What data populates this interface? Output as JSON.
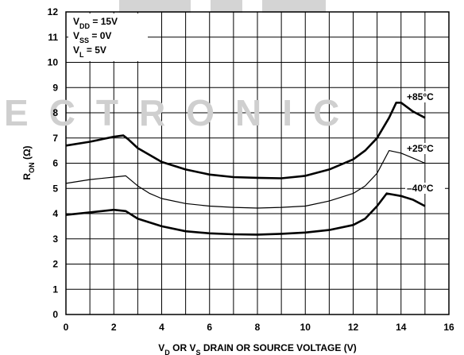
{
  "chart_data": {
    "type": "line",
    "watermark": "ECTRONIC",
    "xlabel": {
      "main": "V",
      "sub1": "D",
      "mid": " OR V",
      "sub2": "S",
      "rest": " DRAIN OR SOURCE VOLTAGE (V)"
    },
    "ylabel": {
      "main": "R",
      "sub": "ON",
      "rest": " (Ω)"
    },
    "annotations": [
      {
        "main": "V",
        "sub": "DD",
        "rest": " = 15V"
      },
      {
        "main": "V",
        "sub": "SS",
        "rest": " = 0V"
      },
      {
        "main": "V",
        "sub": "L",
        "rest": " = 5V"
      }
    ],
    "xlim": [
      0,
      16
    ],
    "ylim": [
      0,
      12
    ],
    "xticks": [
      0,
      2,
      4,
      6,
      8,
      10,
      12,
      14,
      16
    ],
    "yticks": [
      0,
      1,
      2,
      3,
      4,
      5,
      6,
      7,
      8,
      9,
      10,
      11,
      12
    ],
    "xgrid": [
      0,
      1,
      2,
      3,
      4,
      5,
      6,
      7,
      8,
      9,
      10,
      11,
      12,
      13,
      14,
      15,
      16
    ],
    "grid": true,
    "series": [
      {
        "name": "+85°C",
        "color": "#000000",
        "line_width": 2.6,
        "x": [
          0,
          1,
          2,
          2.4,
          2.6,
          3,
          4,
          5,
          6,
          7,
          8,
          9,
          10,
          11,
          12,
          12.5,
          13,
          13.5,
          13.8,
          14,
          14.5,
          15
        ],
        "values": [
          6.7,
          6.85,
          7.05,
          7.1,
          6.95,
          6.6,
          6.05,
          5.75,
          5.55,
          5.45,
          5.42,
          5.4,
          5.5,
          5.75,
          6.15,
          6.5,
          7.0,
          7.8,
          8.4,
          8.4,
          8.05,
          7.8
        ]
      },
      {
        "name": "+25°C",
        "color": "#000000",
        "line_width": 1.2,
        "x": [
          0,
          1,
          2,
          2.5,
          3,
          3.5,
          4,
          5,
          6,
          7,
          8,
          9,
          10,
          11,
          12,
          12.5,
          13,
          13.5,
          14,
          14.5,
          15
        ],
        "values": [
          5.2,
          5.35,
          5.45,
          5.5,
          5.1,
          4.8,
          4.6,
          4.4,
          4.3,
          4.25,
          4.22,
          4.25,
          4.3,
          4.5,
          4.8,
          5.1,
          5.6,
          6.5,
          6.4,
          6.2,
          6.0
        ]
      },
      {
        "name": "–40°C",
        "color": "#000000",
        "line_width": 2.6,
        "x": [
          0,
          1,
          2,
          2.5,
          3,
          4,
          5,
          6,
          7,
          8,
          9,
          10,
          11,
          12,
          12.5,
          13,
          13.4,
          14,
          14.5,
          15
        ],
        "values": [
          3.95,
          4.05,
          4.15,
          4.1,
          3.8,
          3.5,
          3.3,
          3.22,
          3.18,
          3.17,
          3.2,
          3.25,
          3.35,
          3.55,
          3.8,
          4.3,
          4.8,
          4.7,
          4.55,
          4.3
        ]
      }
    ]
  }
}
